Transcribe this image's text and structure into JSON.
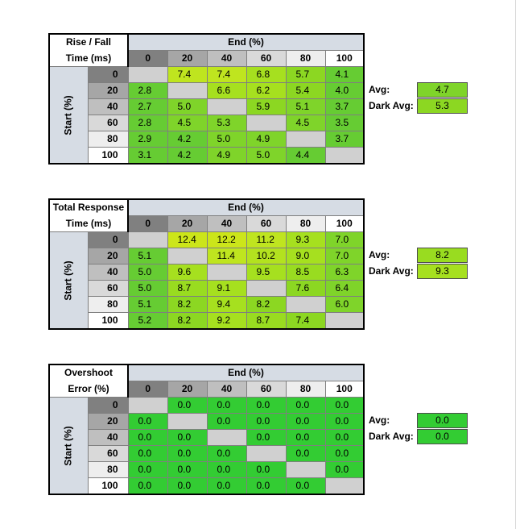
{
  "tables": [
    {
      "title_line1": "Rise / Fall",
      "title_line2": "Time (ms)",
      "end_label": "End (%)",
      "start_label": "Start (%)",
      "col_headers": [
        "0",
        "20",
        "40",
        "60",
        "80",
        "100"
      ],
      "rows": [
        {
          "label": "0",
          "cells": [
            "",
            "7.4",
            "7.4",
            "6.8",
            "5.7",
            "4.1"
          ]
        },
        {
          "label": "20",
          "cells": [
            "2.8",
            "",
            "6.6",
            "6.2",
            "5.4",
            "4.0"
          ]
        },
        {
          "label": "40",
          "cells": [
            "2.7",
            "5.0",
            "",
            "5.9",
            "5.1",
            "3.7"
          ]
        },
        {
          "label": "60",
          "cells": [
            "2.8",
            "4.5",
            "5.3",
            "",
            "4.5",
            "3.5"
          ]
        },
        {
          "label": "80",
          "cells": [
            "2.9",
            "4.2",
            "5.0",
            "4.9",
            "",
            "3.7"
          ]
        },
        {
          "label": "100",
          "cells": [
            "3.1",
            "4.2",
            "4.9",
            "5.0",
            "4.4",
            ""
          ]
        }
      ],
      "colors": [
        [
          "#d0d0d0",
          "#bfe51f",
          "#bfe51f",
          "#a6e01f",
          "#8cd722",
          "#66cc33"
        ],
        [
          "#66cc33",
          "#d0d0d0",
          "#a6e01f",
          "#a6e01f",
          "#8cd722",
          "#66cc33"
        ],
        [
          "#66cc33",
          "#7fd42a",
          "#d0d0d0",
          "#8cd722",
          "#7fd42a",
          "#66cc33"
        ],
        [
          "#66cc33",
          "#7fd42a",
          "#7fd42a",
          "#d0d0d0",
          "#7fd42a",
          "#66cc33"
        ],
        [
          "#66cc33",
          "#66cc33",
          "#7fd42a",
          "#7fd42a",
          "#d0d0d0",
          "#66cc33"
        ],
        [
          "#66cc33",
          "#66cc33",
          "#7fd42a",
          "#7fd42a",
          "#66cc33",
          "#d0d0d0"
        ]
      ],
      "avg_label": "Avg:",
      "avg_value": "4.7",
      "avg_color": "#7fd42a",
      "dark_avg_label": "Dark Avg:",
      "dark_avg_value": "5.3",
      "dark_avg_color": "#8cd722"
    },
    {
      "title_line1": "Total Response",
      "title_line2": "Time (ms)",
      "end_label": "End (%)",
      "start_label": "Start (%)",
      "col_headers": [
        "0",
        "20",
        "40",
        "60",
        "80",
        "100"
      ],
      "rows": [
        {
          "label": "0",
          "cells": [
            "",
            "12.4",
            "12.2",
            "11.2",
            "9.3",
            "7.0"
          ]
        },
        {
          "label": "20",
          "cells": [
            "5.1",
            "",
            "11.4",
            "10.2",
            "9.0",
            "7.0"
          ]
        },
        {
          "label": "40",
          "cells": [
            "5.0",
            "9.6",
            "",
            "9.5",
            "8.5",
            "6.3"
          ]
        },
        {
          "label": "60",
          "cells": [
            "5.0",
            "8.7",
            "9.1",
            "",
            "7.6",
            "6.4"
          ]
        },
        {
          "label": "80",
          "cells": [
            "5.1",
            "8.2",
            "9.4",
            "8.2",
            "",
            "6.0"
          ]
        },
        {
          "label": "100",
          "cells": [
            "5.2",
            "8.2",
            "9.2",
            "8.7",
            "7.4",
            ""
          ]
        }
      ],
      "colors": [
        [
          "#d0d0d0",
          "#cce51a",
          "#cce51a",
          "#bfe51f",
          "#a6e01f",
          "#7fd42a"
        ],
        [
          "#66cc33",
          "#d0d0d0",
          "#bfe51f",
          "#b3e21f",
          "#a6e01f",
          "#7fd42a"
        ],
        [
          "#66cc33",
          "#a6e01f",
          "#d0d0d0",
          "#a6e01f",
          "#99dc20",
          "#7fd42a"
        ],
        [
          "#66cc33",
          "#99dc20",
          "#a6e01f",
          "#d0d0d0",
          "#8cd722",
          "#7fd42a"
        ],
        [
          "#66cc33",
          "#8cd722",
          "#a6e01f",
          "#8cd722",
          "#d0d0d0",
          "#7fd42a"
        ],
        [
          "#66cc33",
          "#8cd722",
          "#a6e01f",
          "#99dc20",
          "#8cd722",
          "#d0d0d0"
        ]
      ],
      "avg_label": "Avg:",
      "avg_value": "8.2",
      "avg_color": "#99dc20",
      "dark_avg_label": "Dark Avg:",
      "dark_avg_value": "9.3",
      "dark_avg_color": "#a6e01f"
    },
    {
      "title_line1": "Overshoot",
      "title_line2": "Error (%)",
      "end_label": "End (%)",
      "start_label": "Start (%)",
      "col_headers": [
        "0",
        "20",
        "40",
        "60",
        "80",
        "100"
      ],
      "rows": [
        {
          "label": "0",
          "cells": [
            "",
            "0.0",
            "0.0",
            "0.0",
            "0.0",
            "0.0"
          ]
        },
        {
          "label": "20",
          "cells": [
            "0.0",
            "",
            "0.0",
            "0.0",
            "0.0",
            "0.0"
          ]
        },
        {
          "label": "40",
          "cells": [
            "0.0",
            "0.0",
            "",
            "0.0",
            "0.0",
            "0.0"
          ]
        },
        {
          "label": "60",
          "cells": [
            "0.0",
            "0.0",
            "0.0",
            "",
            "0.0",
            "0.0"
          ]
        },
        {
          "label": "80",
          "cells": [
            "0.0",
            "0.0",
            "0.0",
            "0.0",
            "",
            "0.0"
          ]
        },
        {
          "label": "100",
          "cells": [
            "0.0",
            "0.0",
            "0.0",
            "0.0",
            "0.0",
            ""
          ]
        }
      ],
      "colors": [
        [
          "#d0d0d0",
          "#33cc33",
          "#33cc33",
          "#33cc33",
          "#33cc33",
          "#33cc33"
        ],
        [
          "#33cc33",
          "#d0d0d0",
          "#33cc33",
          "#33cc33",
          "#33cc33",
          "#33cc33"
        ],
        [
          "#33cc33",
          "#33cc33",
          "#d0d0d0",
          "#33cc33",
          "#33cc33",
          "#33cc33"
        ],
        [
          "#33cc33",
          "#33cc33",
          "#33cc33",
          "#d0d0d0",
          "#33cc33",
          "#33cc33"
        ],
        [
          "#33cc33",
          "#33cc33",
          "#33cc33",
          "#33cc33",
          "#d0d0d0",
          "#33cc33"
        ],
        [
          "#33cc33",
          "#33cc33",
          "#33cc33",
          "#33cc33",
          "#33cc33",
          "#d0d0d0"
        ]
      ],
      "avg_label": "Avg:",
      "avg_value": "0.0",
      "avg_color": "#33cc33",
      "dark_avg_label": "Dark Avg:",
      "dark_avg_value": "0.0",
      "dark_avg_color": "#33cc33"
    }
  ],
  "header_shades": [
    "#808080",
    "#a6a6a6",
    "#bfbfbf",
    "#d9d9d9",
    "#eeeeee",
    "#ffffff"
  ]
}
